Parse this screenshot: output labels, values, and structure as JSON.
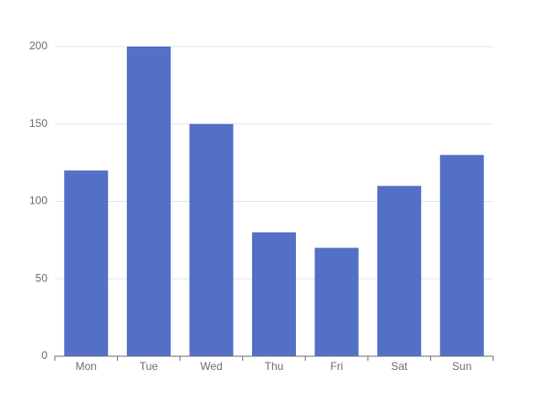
{
  "chart_data": {
    "type": "bar",
    "categories": [
      "Mon",
      "Tue",
      "Wed",
      "Thu",
      "Fri",
      "Sat",
      "Sun"
    ],
    "values": [
      120,
      200,
      150,
      80,
      70,
      110,
      130
    ],
    "color": "#5470c6",
    "ylim": [
      0,
      200
    ],
    "yticks": [
      0,
      50,
      100,
      150,
      200
    ],
    "grid": true
  }
}
